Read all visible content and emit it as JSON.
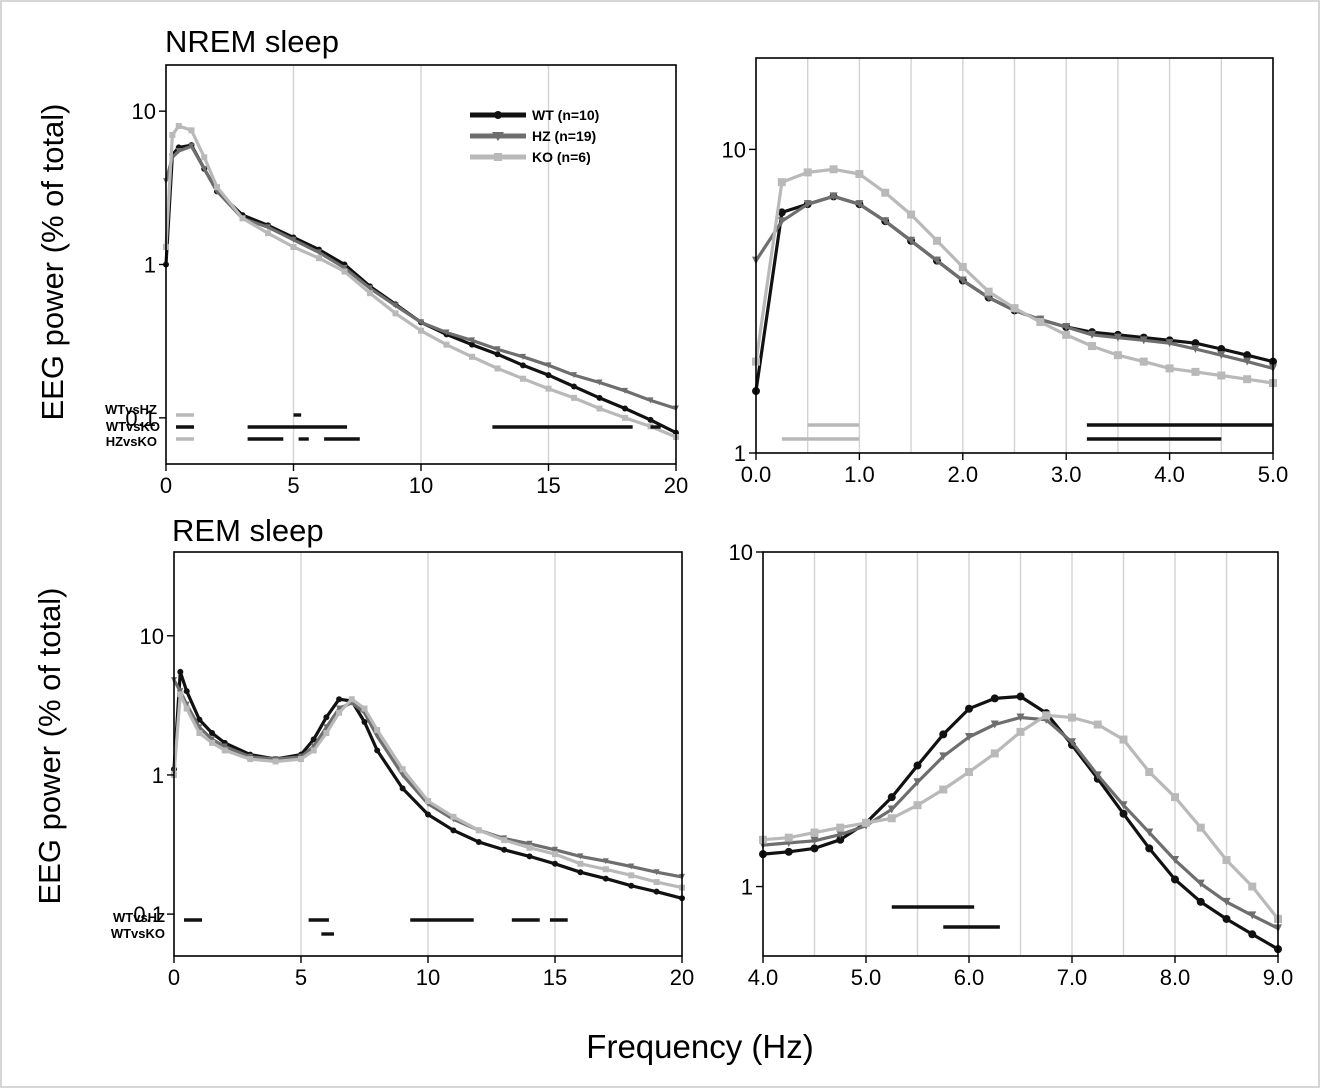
{
  "figure": {
    "ylabel_top": "EEG power (% of total)",
    "ylabel_bottom": "EEG power (% of total)",
    "xlabel": "Frequency (Hz)"
  },
  "colors": {
    "WT": "#111111",
    "HZ": "#6e6e6e",
    "KO": "#b9b9b9",
    "grid": "#d3d3d3"
  },
  "legend": [
    {
      "series": "WT",
      "label": "WT (n=10)"
    },
    {
      "series": "HZ",
      "label": "HZ (n=19)"
    },
    {
      "series": "KO",
      "label": "KO (n=6)"
    }
  ],
  "chart_data": [
    {
      "id": "nrem_full",
      "type": "line",
      "title": "NREM sleep",
      "xlabel": "",
      "ylabel": "",
      "xlim": [
        0,
        20
      ],
      "ylim": [
        0.05,
        20
      ],
      "yscale": "log",
      "xticks": [
        0,
        5,
        10,
        15,
        20
      ],
      "xtick_labels": [
        "0",
        "5",
        "10",
        "15",
        "20"
      ],
      "yticks": [
        0.1,
        1,
        10
      ],
      "ytick_labels": [
        "0.1",
        "1",
        "10"
      ],
      "vgrid": [
        5,
        10,
        15
      ],
      "series": [
        {
          "name": "WT",
          "x": [
            0,
            0.25,
            0.5,
            1,
            1.5,
            2,
            3,
            4,
            5,
            6,
            7,
            8,
            9,
            10,
            11,
            12,
            13,
            14,
            15,
            16,
            17,
            18,
            19,
            20
          ],
          "y": [
            1.0,
            5.2,
            5.8,
            6.0,
            4.2,
            3.0,
            2.1,
            1.8,
            1.5,
            1.25,
            1.0,
            0.72,
            0.55,
            0.42,
            0.35,
            0.3,
            0.26,
            0.22,
            0.19,
            0.16,
            0.135,
            0.115,
            0.097,
            0.08
          ]
        },
        {
          "name": "HZ",
          "x": [
            0,
            0.25,
            0.5,
            1,
            1.5,
            2,
            3,
            4,
            5,
            6,
            7,
            8,
            9,
            10,
            11,
            12,
            13,
            14,
            15,
            16,
            17,
            18,
            19,
            20
          ],
          "y": [
            3.5,
            5.0,
            5.5,
            5.9,
            4.2,
            3.0,
            2.0,
            1.75,
            1.45,
            1.2,
            0.95,
            0.7,
            0.54,
            0.42,
            0.36,
            0.32,
            0.28,
            0.25,
            0.22,
            0.19,
            0.17,
            0.15,
            0.13,
            0.115
          ]
        },
        {
          "name": "KO",
          "x": [
            0,
            0.25,
            0.5,
            1,
            1.5,
            2,
            3,
            4,
            5,
            6,
            7,
            8,
            9,
            10,
            11,
            12,
            13,
            14,
            15,
            16,
            17,
            18,
            19,
            20
          ],
          "y": [
            1.3,
            7.0,
            8.0,
            7.5,
            5.0,
            3.2,
            2.0,
            1.6,
            1.3,
            1.1,
            0.9,
            0.65,
            0.48,
            0.37,
            0.3,
            0.25,
            0.21,
            0.18,
            0.155,
            0.135,
            0.115,
            0.1,
            0.088,
            0.075
          ]
        }
      ],
      "sig_rows": [
        {
          "label": "WTvsHZ",
          "color_key": "KO",
          "segments": [
            [
              0.5,
              1.1
            ]
          ]
        },
        {
          "label": "WTvsKO",
          "color_key": "WT",
          "segments": [
            [
              0.5,
              1.1
            ]
          ]
        },
        {
          "label": "HZvsKO",
          "color_key": "KO",
          "segments": [
            [
              0.5,
              1.1
            ]
          ]
        }
      ],
      "sig_lines": [
        {
          "y": 1,
          "color_key": "WT",
          "segments": [
            [
              5.0,
              5.3
            ]
          ]
        },
        {
          "y": 2,
          "color_key": "WT",
          "segments": [
            [
              3.2,
              7.1
            ],
            [
              12.8,
              18.3
            ],
            [
              19.0,
              19.4
            ]
          ]
        },
        {
          "y": 3,
          "color_key": "WT",
          "segments": [
            [
              3.2,
              4.6
            ],
            [
              5.2,
              5.6
            ],
            [
              6.2,
              7.6
            ]
          ]
        }
      ]
    },
    {
      "id": "nrem_zoom",
      "type": "line",
      "title": "",
      "xlabel": "",
      "ylabel": "",
      "xlim": [
        0,
        5
      ],
      "ylim": [
        1,
        20
      ],
      "yscale": "log",
      "xticks": [
        0,
        1,
        2,
        3,
        4,
        5
      ],
      "xtick_labels": [
        "0.0",
        "1.0",
        "2.0",
        "3.0",
        "4.0",
        "5.0"
      ],
      "yticks": [
        1,
        10
      ],
      "ytick_labels": [
        "1",
        "10"
      ],
      "vgrid": [
        0.5,
        1,
        1.5,
        2,
        2.5,
        3,
        3.5,
        4,
        4.5
      ],
      "series": [
        {
          "name": "WT",
          "x": [
            0,
            0.25,
            0.5,
            0.75,
            1.0,
            1.25,
            1.5,
            1.75,
            2.0,
            2.25,
            2.5,
            2.75,
            3.0,
            3.25,
            3.5,
            3.75,
            4.0,
            4.25,
            4.5,
            4.75,
            5.0
          ],
          "y": [
            1.6,
            6.2,
            6.6,
            7.0,
            6.6,
            5.8,
            5.0,
            4.3,
            3.7,
            3.25,
            2.95,
            2.75,
            2.6,
            2.5,
            2.45,
            2.4,
            2.35,
            2.3,
            2.2,
            2.1,
            2.0
          ]
        },
        {
          "name": "HZ",
          "x": [
            0,
            0.25,
            0.5,
            0.75,
            1.0,
            1.25,
            1.5,
            1.75,
            2.0,
            2.25,
            2.5,
            2.75,
            3.0,
            3.25,
            3.5,
            3.75,
            4.0,
            4.25,
            4.5,
            4.75,
            5.0
          ],
          "y": [
            4.3,
            5.8,
            6.6,
            7.0,
            6.6,
            5.8,
            5.0,
            4.3,
            3.7,
            3.25,
            2.95,
            2.75,
            2.6,
            2.45,
            2.4,
            2.35,
            2.3,
            2.2,
            2.1,
            2.0,
            1.9
          ]
        },
        {
          "name": "KO",
          "x": [
            0,
            0.25,
            0.5,
            0.75,
            1.0,
            1.25,
            1.5,
            1.75,
            2.0,
            2.25,
            2.5,
            2.75,
            3.0,
            3.25,
            3.5,
            3.75,
            4.0,
            4.25,
            4.5,
            4.75,
            5.0
          ],
          "y": [
            2.0,
            7.8,
            8.4,
            8.6,
            8.3,
            7.2,
            6.1,
            5.0,
            4.1,
            3.4,
            3.0,
            2.7,
            2.45,
            2.25,
            2.1,
            2.0,
            1.9,
            1.85,
            1.8,
            1.75,
            1.7
          ]
        }
      ],
      "sig_lines": [
        {
          "y": 1,
          "color_key": "KO",
          "segments": [
            [
              0.5,
              1.0
            ]
          ]
        },
        {
          "y": 1,
          "color_key": "WT",
          "segments": [
            [
              3.2,
              5.0
            ]
          ]
        },
        {
          "y": 2,
          "color_key": "KO",
          "segments": [
            [
              0.25,
              1.0
            ]
          ]
        },
        {
          "y": 2,
          "color_key": "WT",
          "segments": [
            [
              3.2,
              4.5
            ]
          ]
        }
      ]
    },
    {
      "id": "rem_full",
      "type": "line",
      "title": "REM sleep",
      "xlabel": "",
      "ylabel": "",
      "xlim": [
        0,
        20
      ],
      "ylim": [
        0.05,
        40
      ],
      "yscale": "log",
      "xticks": [
        0,
        5,
        10,
        15,
        20
      ],
      "xtick_labels": [
        "0",
        "5",
        "10",
        "15",
        "20"
      ],
      "yticks": [
        0.1,
        1,
        10
      ],
      "ytick_labels": [
        "0.1",
        "1",
        "10"
      ],
      "vgrid": [
        5,
        10,
        15
      ],
      "series": [
        {
          "name": "WT",
          "x": [
            0,
            0.25,
            0.5,
            1,
            1.5,
            2,
            3,
            4,
            5,
            5.5,
            6,
            6.5,
            7,
            7.5,
            8,
            9,
            10,
            11,
            12,
            13,
            14,
            15,
            16,
            17,
            18,
            19,
            20
          ],
          "y": [
            1.1,
            5.5,
            4.0,
            2.5,
            2.0,
            1.7,
            1.4,
            1.3,
            1.4,
            1.8,
            2.6,
            3.5,
            3.4,
            2.4,
            1.5,
            0.8,
            0.52,
            0.4,
            0.33,
            0.29,
            0.26,
            0.23,
            0.2,
            0.18,
            0.16,
            0.145,
            0.13
          ]
        },
        {
          "name": "HZ",
          "x": [
            0,
            0.25,
            0.5,
            1,
            1.5,
            2,
            3,
            4,
            5,
            5.5,
            6,
            6.5,
            7,
            7.5,
            8,
            9,
            10,
            11,
            12,
            13,
            14,
            15,
            16,
            17,
            18,
            19,
            20
          ],
          "y": [
            4.8,
            4.0,
            3.2,
            2.2,
            1.8,
            1.6,
            1.35,
            1.3,
            1.35,
            1.6,
            2.2,
            3.0,
            3.3,
            2.8,
            1.9,
            1.0,
            0.62,
            0.48,
            0.4,
            0.35,
            0.32,
            0.29,
            0.26,
            0.24,
            0.22,
            0.2,
            0.185
          ]
        },
        {
          "name": "KO",
          "x": [
            0,
            0.25,
            0.5,
            1,
            1.5,
            2,
            3,
            4,
            5,
            5.5,
            6,
            6.5,
            7,
            7.5,
            8,
            9,
            10,
            11,
            12,
            13,
            14,
            15,
            16,
            17,
            18,
            19,
            20
          ],
          "y": [
            1.0,
            3.8,
            3.0,
            2.0,
            1.7,
            1.5,
            1.3,
            1.25,
            1.3,
            1.5,
            2.0,
            2.8,
            3.5,
            3.0,
            2.1,
            1.1,
            0.65,
            0.5,
            0.4,
            0.34,
            0.3,
            0.27,
            0.23,
            0.21,
            0.19,
            0.17,
            0.155
          ]
        }
      ],
      "sig_rows": [
        {
          "label": "WTvsHZ",
          "color_key": "WT",
          "segments": [
            [
              0.3,
              0.6
            ]
          ]
        },
        {
          "label": "WTvsKO",
          "color_key": "WT",
          "segments": []
        }
      ],
      "sig_lines": [
        {
          "y": 1,
          "color_key": "WT",
          "segments": [
            [
              5.3,
              6.1
            ],
            [
              9.3,
              11.8
            ],
            [
              13.3,
              14.4
            ],
            [
              14.8,
              15.5
            ]
          ]
        },
        {
          "y": 2,
          "color_key": "WT",
          "segments": [
            [
              5.8,
              6.3
            ]
          ]
        }
      ]
    },
    {
      "id": "rem_zoom",
      "type": "line",
      "title": "",
      "xlabel": "",
      "ylabel": "",
      "xlim": [
        4,
        9
      ],
      "ylim": [
        0.62,
        10
      ],
      "yscale": "log",
      "xticks": [
        4,
        5,
        6,
        7,
        8,
        9
      ],
      "xtick_labels": [
        "4.0",
        "5.0",
        "6.0",
        "7.0",
        "8.0",
        "9.0"
      ],
      "yticks": [
        1,
        10
      ],
      "ytick_labels": [
        "1",
        "10"
      ],
      "vgrid": [
        4.5,
        5,
        5.5,
        6,
        6.5,
        7,
        7.5,
        8,
        8.5
      ],
      "series": [
        {
          "name": "WT",
          "x": [
            4,
            4.25,
            4.5,
            4.75,
            5.0,
            5.25,
            5.5,
            5.75,
            6.0,
            6.25,
            6.5,
            6.75,
            7.0,
            7.25,
            7.5,
            7.75,
            8.0,
            8.25,
            8.5,
            8.75,
            9.0
          ],
          "y": [
            1.25,
            1.27,
            1.3,
            1.38,
            1.55,
            1.85,
            2.3,
            2.85,
            3.4,
            3.65,
            3.7,
            3.3,
            2.65,
            2.1,
            1.65,
            1.3,
            1.05,
            0.9,
            0.8,
            0.72,
            0.65
          ]
        },
        {
          "name": "HZ",
          "x": [
            4,
            4.25,
            4.5,
            4.75,
            5.0,
            5.25,
            5.5,
            5.75,
            6.0,
            6.25,
            6.5,
            6.75,
            7.0,
            7.25,
            7.5,
            7.75,
            8.0,
            8.25,
            8.5,
            8.75,
            9.0
          ],
          "y": [
            1.33,
            1.35,
            1.37,
            1.43,
            1.52,
            1.7,
            2.05,
            2.45,
            2.8,
            3.05,
            3.2,
            3.15,
            2.7,
            2.15,
            1.75,
            1.45,
            1.2,
            1.02,
            0.9,
            0.82,
            0.75
          ]
        },
        {
          "name": "KO",
          "x": [
            4,
            4.25,
            4.5,
            4.75,
            5.0,
            5.25,
            5.5,
            5.75,
            6.0,
            6.25,
            6.5,
            6.75,
            7.0,
            7.25,
            7.5,
            7.75,
            8.0,
            8.25,
            8.5,
            8.75,
            9.0
          ],
          "y": [
            1.38,
            1.4,
            1.45,
            1.5,
            1.55,
            1.6,
            1.75,
            1.95,
            2.2,
            2.5,
            2.9,
            3.25,
            3.2,
            3.05,
            2.75,
            2.2,
            1.85,
            1.5,
            1.2,
            1.0,
            0.8
          ]
        }
      ],
      "sig_lines": [
        {
          "y": 1,
          "color_key": "WT",
          "segments": [
            [
              5.25,
              6.05
            ]
          ]
        },
        {
          "y": 2,
          "color_key": "WT",
          "segments": [
            [
              5.75,
              6.3
            ]
          ]
        }
      ]
    }
  ]
}
